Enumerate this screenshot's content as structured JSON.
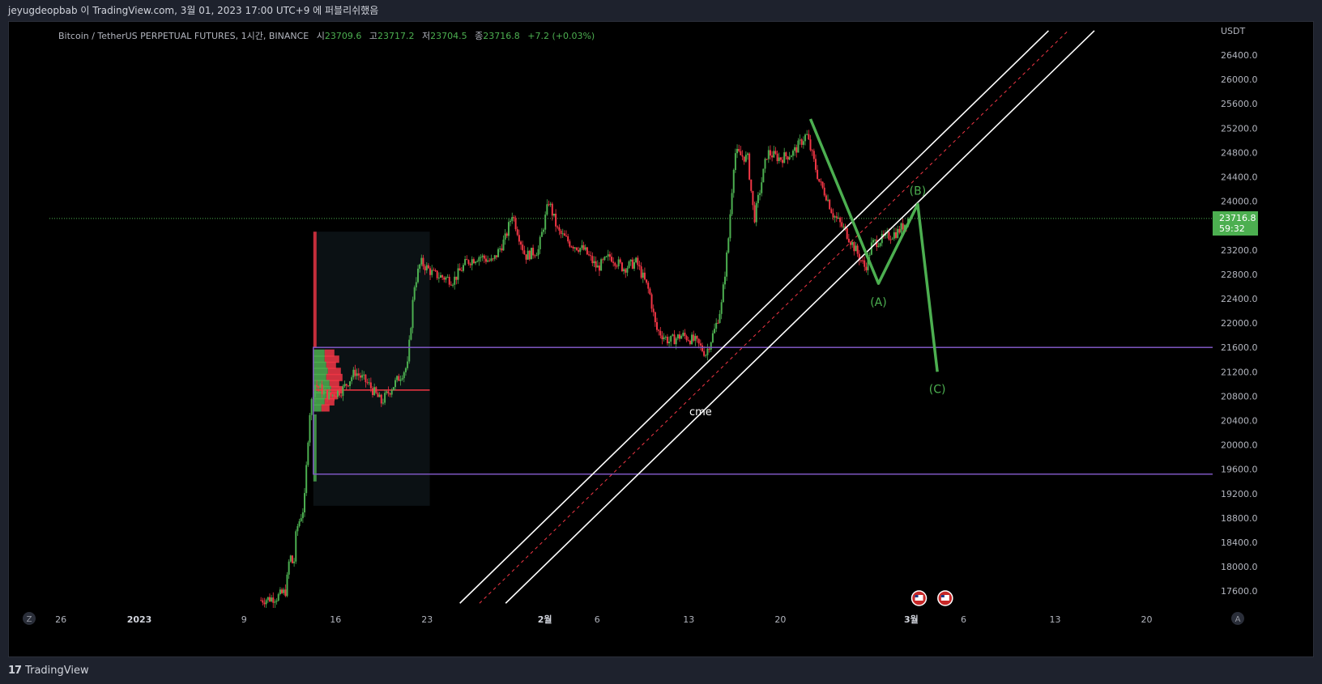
{
  "header": {
    "published_line": "jeyugdeopbab 이 TradingView.com, 3월 01, 2023 17:00 UTC+9 에 퍼블리쉬했음"
  },
  "legend": {
    "symbol": "Bitcoin / TetherUS PERPETUAL FUTURES, 1시간, BINANCE",
    "open_label": "시",
    "open": "23709.6",
    "high_label": "고",
    "high": "23717.2",
    "low_label": "저",
    "low": "23704.5",
    "close_label": "종",
    "close": "23716.8",
    "change": "+7.2 (+0.03%)"
  },
  "price_axis": {
    "currency": "USDT",
    "current_price": "23716.8",
    "countdown": "59:32"
  },
  "footer": {
    "brand": "TradingView",
    "left_button": "Z",
    "right_button": "A"
  },
  "colors": {
    "up": "#4caf50",
    "down": "#f23645",
    "box": "#7e57c2",
    "channel": "#ffffff",
    "channel_mid": "#f23645",
    "wave": "#4caf50",
    "price_tag": "#4caf50"
  },
  "annotations": {
    "zone_label": "cme",
    "wave_a": "(A)",
    "wave_b": "(B)",
    "wave_c": "(C)"
  },
  "chart_data": {
    "type": "candlestick",
    "title": "Bitcoin / TetherUS PERPETUAL FUTURES, 1시간, BINANCE",
    "y_unit": "USDT",
    "ylim": [
      17400,
      26800
    ],
    "y_ticks": [
      "26400.0",
      "26000.0",
      "25600.0",
      "25200.0",
      "24800.0",
      "24400.0",
      "24000.0",
      "23600.0",
      "23200.0",
      "22800.0",
      "22400.0",
      "22000.0",
      "21600.0",
      "21200.0",
      "20800.0",
      "20400.0",
      "20000.0",
      "19600.0",
      "19200.0",
      "18800.0",
      "18400.0",
      "18000.0",
      "17600.0"
    ],
    "x_ticks": [
      "26",
      "2023",
      "9",
      "16",
      "23",
      "2월",
      "6",
      "13",
      "20",
      "3월",
      "6",
      "13",
      "20"
    ],
    "x_tick_days": [
      -6,
      0,
      8,
      15,
      22,
      31,
      35,
      42,
      49,
      59,
      63,
      70,
      77
    ],
    "price_path": [
      [
        9.3,
        17450
      ],
      [
        10.5,
        17500
      ],
      [
        11.2,
        17600
      ],
      [
        11.5,
        18200
      ],
      [
        11.8,
        18000
      ],
      [
        12.0,
        18600
      ],
      [
        12.6,
        19000
      ],
      [
        13.0,
        20500
      ],
      [
        13.4,
        21000
      ],
      [
        14.5,
        20800
      ],
      [
        15.5,
        20900
      ],
      [
        16.5,
        21200
      ],
      [
        17.5,
        21000
      ],
      [
        18.5,
        20700
      ],
      [
        19.5,
        21000
      ],
      [
        20.5,
        21300
      ],
      [
        21.0,
        22600
      ],
      [
        21.5,
        23000
      ],
      [
        22.5,
        22800
      ],
      [
        24.0,
        22700
      ],
      [
        25.0,
        23000
      ],
      [
        26.0,
        23100
      ],
      [
        27.0,
        23000
      ],
      [
        28.0,
        23400
      ],
      [
        28.5,
        23800
      ],
      [
        29.5,
        23100
      ],
      [
        30.5,
        23200
      ],
      [
        31.3,
        24000
      ],
      [
        32.0,
        23500
      ],
      [
        33.0,
        23300
      ],
      [
        34.0,
        23200
      ],
      [
        35.0,
        22900
      ],
      [
        36.0,
        23100
      ],
      [
        37.0,
        22900
      ],
      [
        38.0,
        23000
      ],
      [
        39.0,
        22500
      ],
      [
        39.5,
        21900
      ],
      [
        40.5,
        21700
      ],
      [
        41.5,
        21800
      ],
      [
        42.5,
        21700
      ],
      [
        43.3,
        21500
      ],
      [
        44.0,
        21900
      ],
      [
        44.5,
        22300
      ],
      [
        45.0,
        23300
      ],
      [
        45.5,
        24800
      ],
      [
        46.5,
        24700
      ],
      [
        47.0,
        23700
      ],
      [
        48.0,
        24800
      ],
      [
        49.0,
        24700
      ],
      [
        50.0,
        24800
      ],
      [
        51.0,
        25100
      ],
      [
        52.0,
        24300
      ],
      [
        52.5,
        24100
      ],
      [
        53.0,
        23800
      ],
      [
        54.0,
        23500
      ],
      [
        55.0,
        23100
      ],
      [
        55.5,
        22900
      ],
      [
        56.0,
        23300
      ],
      [
        57.0,
        23400
      ],
      [
        58.0,
        23500
      ],
      [
        58.8,
        23717
      ]
    ],
    "volume_profile_poc": 20900,
    "zone_box": {
      "day_start": 13.3,
      "day_end": 82.2,
      "price_top": 21600,
      "price_bottom": 19520
    },
    "volume_profile_range": {
      "day_start": 13.3,
      "day_end": 22.2,
      "price_top": 23500,
      "price_bottom": 19000
    },
    "channel": {
      "upper": [
        [
          24.5,
          17400
        ],
        [
          69.5,
          26800
        ]
      ],
      "middle": [
        [
          26.0,
          17400
        ],
        [
          71.0,
          26800
        ]
      ],
      "lower": [
        [
          28.0,
          17400
        ],
        [
          73.0,
          26800
        ]
      ]
    },
    "elliott_wave": [
      [
        51.3,
        25350
      ],
      [
        56.5,
        22650
      ],
      [
        59.5,
        23950
      ],
      [
        61.0,
        21200
      ]
    ],
    "current_price": 23716.8
  }
}
